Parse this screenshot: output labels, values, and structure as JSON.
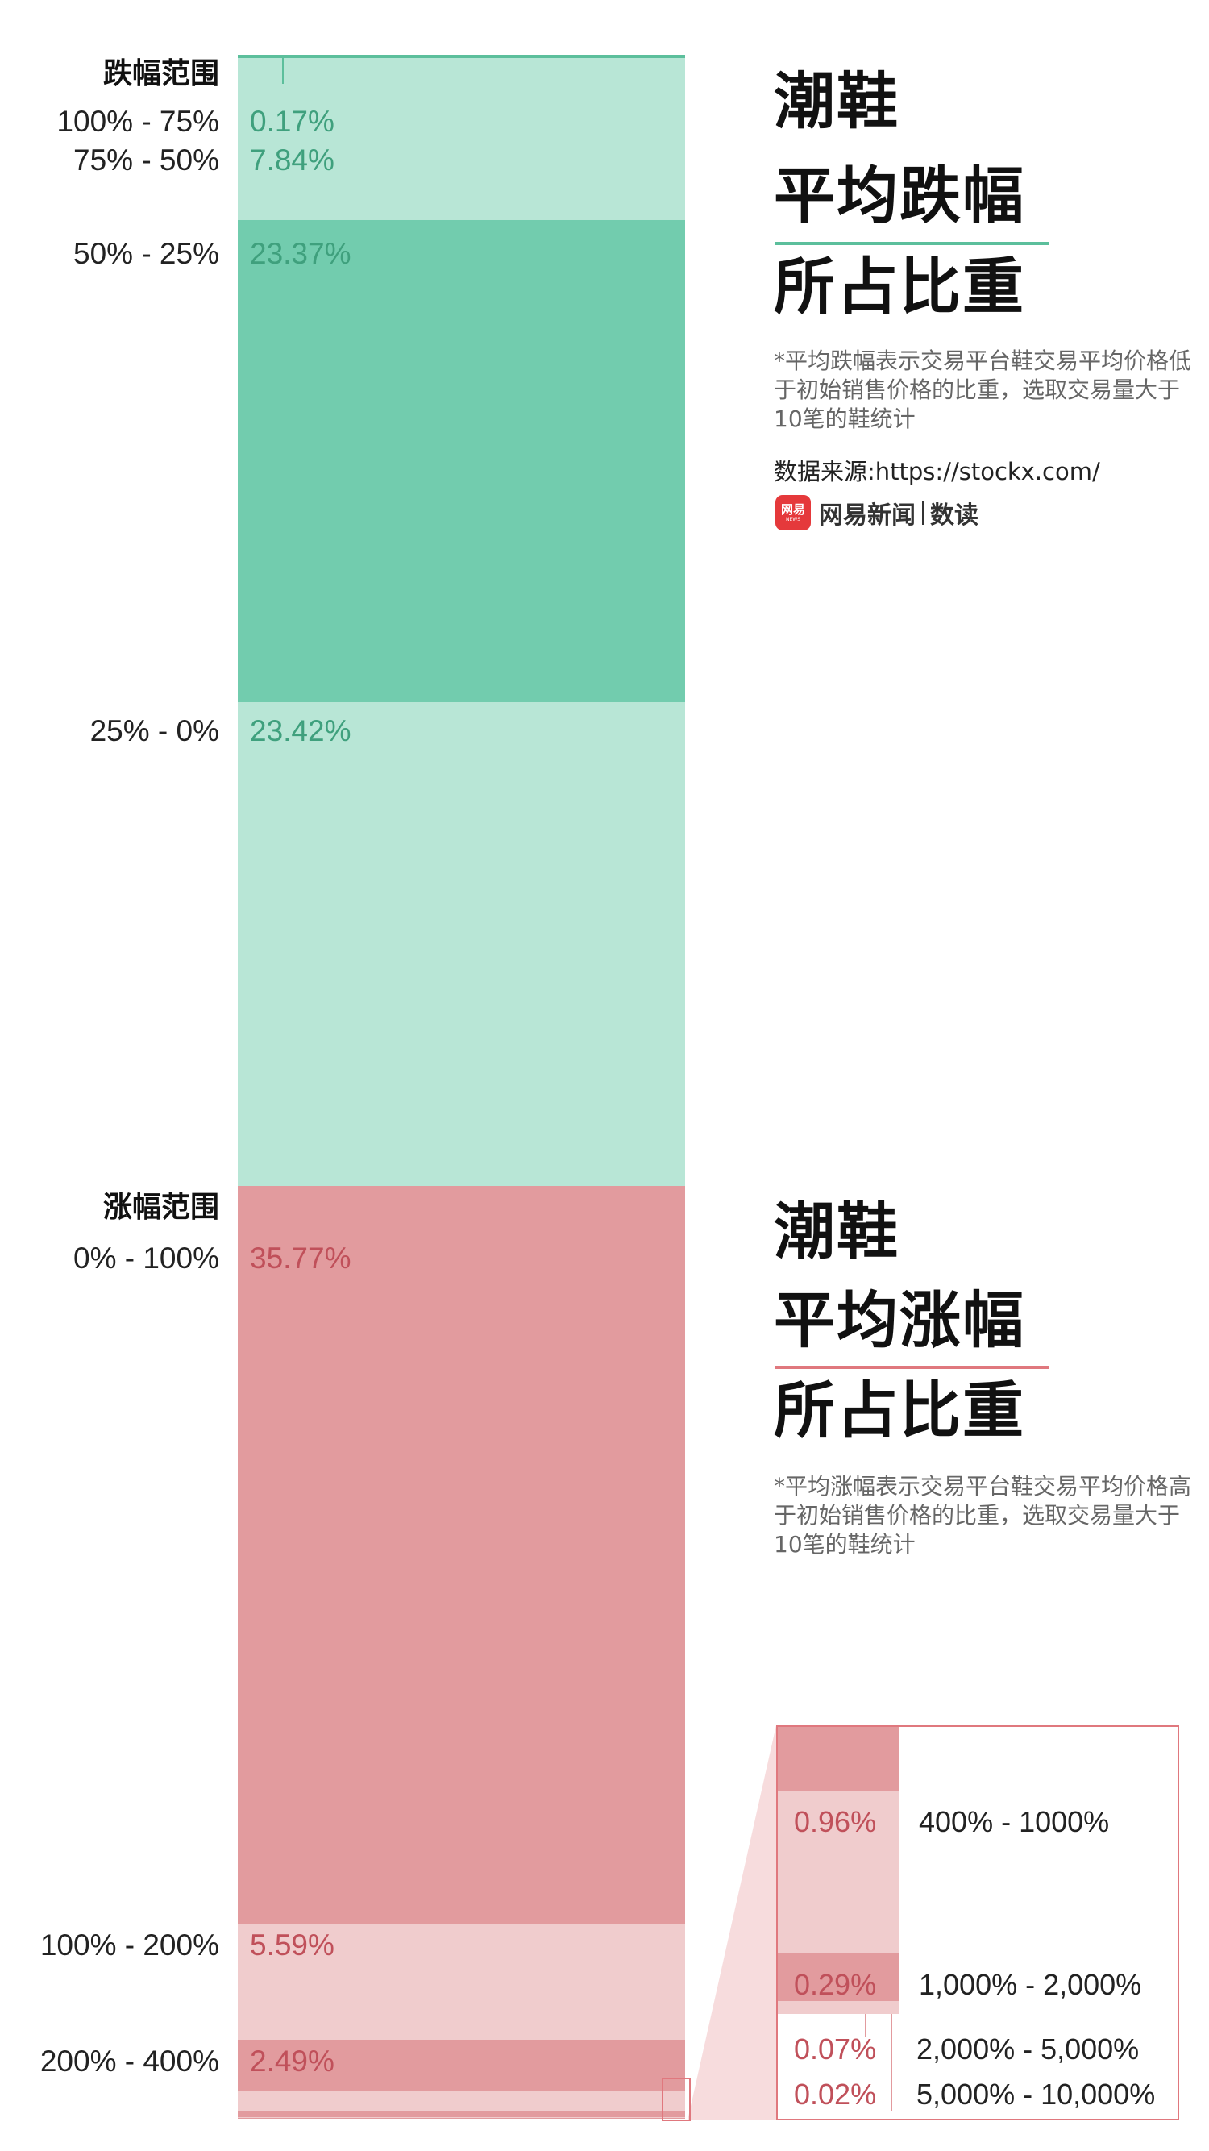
{
  "colors": {
    "decline_light": "#b8e6d6",
    "decline_dark": "#72ccae",
    "decline_line": "#5cbf9c",
    "decline_text": "#3fa07d",
    "rise_dark": "#e29b9e",
    "rise_light": "#f0cccd",
    "rise_text": "#c0505a",
    "inset_border": "#e0787e"
  },
  "decline": {
    "section_label": "跌幅范围",
    "title_line1": "潮鞋",
    "title_line2": "平均跌幅",
    "title_line3": "所占比重",
    "note": "*平均跌幅表示交易平台鞋交易平均价格低于初始销售价格的比重，选取交易量大于10笔的鞋统计",
    "source": "数据来源:https://stockx.com/",
    "logo_badge": "网易",
    "logo_badge_sub": "NEWS",
    "logo_text": "网易新闻",
    "logo_text2": "数读"
  },
  "rise": {
    "section_label": "涨幅范围",
    "title_line1": "潮鞋",
    "title_line2": "平均涨幅",
    "title_line3": "所占比重",
    "note": "*平均涨幅表示交易平台鞋交易平均价格高于初始销售价格的比重，选取交易量大于10笔的鞋统计"
  },
  "chart_data": {
    "type": "bar",
    "subtype": "stacked-100",
    "decline_segments": [
      {
        "range": "100% - 75%",
        "value": 0.17,
        "label": "0.17%",
        "shade": "light"
      },
      {
        "range": "75% - 50%",
        "value": 7.84,
        "label": "7.84%",
        "shade": "light"
      },
      {
        "range": "50% - 25%",
        "value": 23.37,
        "label": "23.37%",
        "shade": "dark"
      },
      {
        "range": "25% - 0%",
        "value": 23.42,
        "label": "23.42%",
        "shade": "light"
      }
    ],
    "rise_segments": [
      {
        "range": "0% - 100%",
        "value": 35.77,
        "label": "35.77%",
        "shade": "dark"
      },
      {
        "range": "100% - 200%",
        "value": 5.59,
        "label": "5.59%",
        "shade": "light"
      },
      {
        "range": "200% - 400%",
        "value": 2.49,
        "label": "2.49%",
        "shade": "dark"
      },
      {
        "range": "400% - 1000%",
        "value": 0.96,
        "label": "0.96%",
        "shade": "light"
      },
      {
        "range": "1,000% - 2,000%",
        "value": 0.29,
        "label": "0.29%",
        "shade": "dark"
      },
      {
        "range": "2,000% - 5,000%",
        "value": 0.07,
        "label": "0.07%",
        "shade": "light"
      },
      {
        "range": "5,000% - 10,000%",
        "value": 0.02,
        "label": "0.02%",
        "shade": "dark"
      }
    ]
  }
}
